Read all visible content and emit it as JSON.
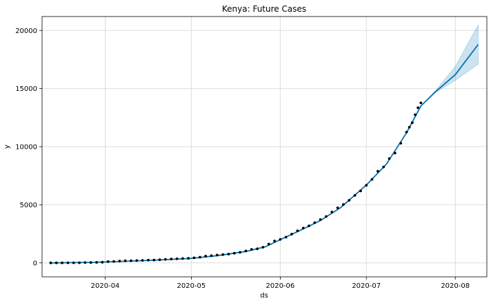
{
  "chart_data": {
    "type": "line",
    "title": "Kenya: Future Cases",
    "xlabel": "ds",
    "ylabel": "y",
    "x_range": [
      "2020-03-10",
      "2020-08-12"
    ],
    "ylim": [
      -1200,
      21200
    ],
    "grid": true,
    "x_ticks": [
      "2020-04-01",
      "2020-05-01",
      "2020-06-01",
      "2020-07-01",
      "2020-08-01"
    ],
    "x_tick_labels": [
      "2020-04",
      "2020-05",
      "2020-06",
      "2020-07",
      "2020-08"
    ],
    "y_ticks": [
      0,
      5000,
      10000,
      15000,
      20000
    ],
    "y_tick_labels": [
      "0",
      "5000",
      "10000",
      "15000",
      "20000"
    ],
    "colors": {
      "forecast": "#0072B2",
      "interval": "#0072B2",
      "observed": "#000000",
      "grid": "#dddddd"
    },
    "series": [
      {
        "type": "scatter",
        "points": [
          [
            "2020-03-13",
            1
          ],
          [
            "2020-03-15",
            3
          ],
          [
            "2020-03-17",
            3
          ],
          [
            "2020-03-19",
            7
          ],
          [
            "2020-03-21",
            7
          ],
          [
            "2020-03-23",
            16
          ],
          [
            "2020-03-25",
            28
          ],
          [
            "2020-03-27",
            31
          ],
          [
            "2020-03-29",
            42
          ],
          [
            "2020-03-31",
            59
          ],
          [
            "2020-04-02",
            110
          ],
          [
            "2020-04-04",
            126
          ],
          [
            "2020-04-06",
            158
          ],
          [
            "2020-04-08",
            179
          ],
          [
            "2020-04-10",
            189
          ],
          [
            "2020-04-12",
            197
          ],
          [
            "2020-04-14",
            216
          ],
          [
            "2020-04-16",
            234
          ],
          [
            "2020-04-18",
            246
          ],
          [
            "2020-04-20",
            270
          ],
          [
            "2020-04-22",
            303
          ],
          [
            "2020-04-24",
            336
          ],
          [
            "2020-04-26",
            355
          ],
          [
            "2020-04-28",
            374
          ],
          [
            "2020-04-30",
            396
          ],
          [
            "2020-05-02",
            435
          ],
          [
            "2020-05-04",
            490
          ],
          [
            "2020-05-06",
            582
          ],
          [
            "2020-05-08",
            621
          ],
          [
            "2020-05-10",
            672
          ],
          [
            "2020-05-12",
            715
          ],
          [
            "2020-05-14",
            758
          ],
          [
            "2020-05-16",
            830
          ],
          [
            "2020-05-18",
            912
          ],
          [
            "2020-05-20",
            1029
          ],
          [
            "2020-05-22",
            1161
          ],
          [
            "2020-05-24",
            1214
          ],
          [
            "2020-05-26",
            1348
          ],
          [
            "2020-05-28",
            1618
          ],
          [
            "2020-05-30",
            1888
          ],
          [
            "2020-06-01",
            2021
          ],
          [
            "2020-06-03",
            2211
          ],
          [
            "2020-06-05",
            2474
          ],
          [
            "2020-06-07",
            2767
          ],
          [
            "2020-06-09",
            2989
          ],
          [
            "2020-06-11",
            3188
          ],
          [
            "2020-06-13",
            3457
          ],
          [
            "2020-06-15",
            3727
          ],
          [
            "2020-06-17",
            3994
          ],
          [
            "2020-06-19",
            4374
          ],
          [
            "2020-06-21",
            4738
          ],
          [
            "2020-06-23",
            5021
          ],
          [
            "2020-06-25",
            5384
          ],
          [
            "2020-06-27",
            5811
          ],
          [
            "2020-06-29",
            6190
          ],
          [
            "2020-07-01",
            6673
          ],
          [
            "2020-07-03",
            7188
          ],
          [
            "2020-07-05",
            7886
          ],
          [
            "2020-07-07",
            8250
          ],
          [
            "2020-07-09",
            8975
          ],
          [
            "2020-07-11",
            9448
          ],
          [
            "2020-07-13",
            10294
          ],
          [
            "2020-07-15",
            11252
          ],
          [
            "2020-07-16",
            11673
          ],
          [
            "2020-07-17",
            12062
          ],
          [
            "2020-07-18",
            12750
          ],
          [
            "2020-07-19",
            13353
          ],
          [
            "2020-07-20",
            13771
          ]
        ]
      },
      {
        "type": "line",
        "points": [
          [
            "2020-03-13",
            0
          ],
          [
            "2020-03-20",
            20
          ],
          [
            "2020-03-27",
            40
          ],
          [
            "2020-04-01",
            80
          ],
          [
            "2020-04-10",
            160
          ],
          [
            "2020-04-20",
            250
          ],
          [
            "2020-05-01",
            390
          ],
          [
            "2020-05-10",
            620
          ],
          [
            "2020-05-20",
            980
          ],
          [
            "2020-05-27",
            1400
          ],
          [
            "2020-06-01",
            2000
          ],
          [
            "2020-06-08",
            2800
          ],
          [
            "2020-06-15",
            3650
          ],
          [
            "2020-06-22",
            4750
          ],
          [
            "2020-07-01",
            6700
          ],
          [
            "2020-07-08",
            8500
          ],
          [
            "2020-07-15",
            11200
          ],
          [
            "2020-07-20",
            13500
          ],
          [
            "2020-07-25",
            14700
          ],
          [
            "2020-08-01",
            16200
          ],
          [
            "2020-08-09",
            18800
          ]
        ]
      },
      {
        "type": "band",
        "lower": [
          [
            "2020-07-20",
            13500
          ],
          [
            "2020-07-25",
            14650
          ],
          [
            "2020-08-01",
            15700
          ],
          [
            "2020-08-09",
            17100
          ]
        ],
        "upper": [
          [
            "2020-07-20",
            13500
          ],
          [
            "2020-07-25",
            14800
          ],
          [
            "2020-08-01",
            16900
          ],
          [
            "2020-08-09",
            20500
          ]
        ]
      }
    ]
  }
}
